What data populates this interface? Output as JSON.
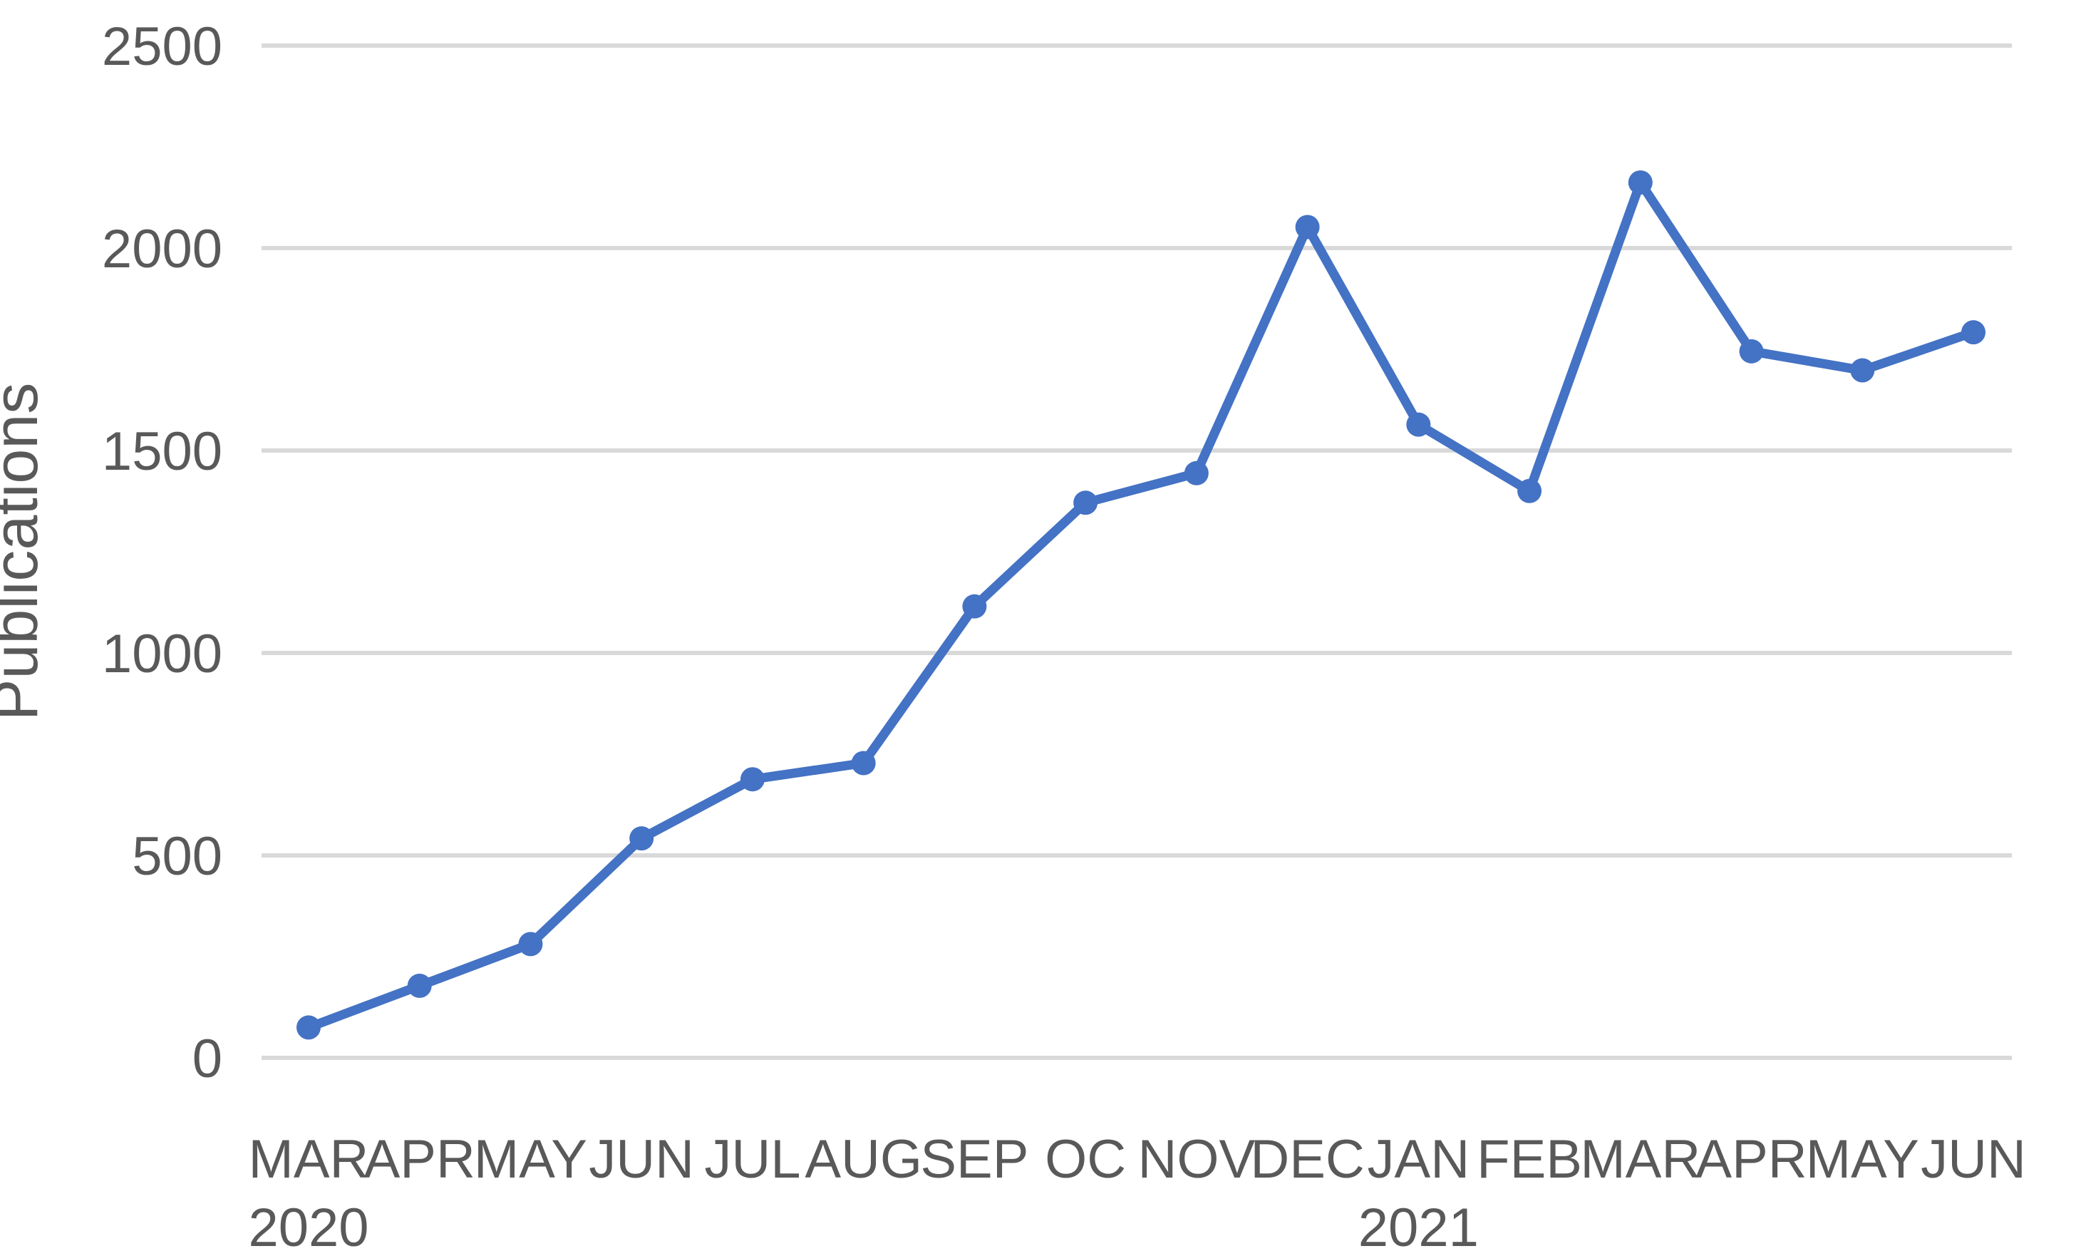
{
  "chart_data": {
    "type": "line",
    "title": "",
    "xlabel": "",
    "ylabel": "Publications",
    "ylim": [
      0,
      2500
    ],
    "yticks": [
      0,
      500,
      1000,
      1500,
      2000,
      2500
    ],
    "grid": true,
    "legend": "none",
    "categories": [
      "MAR",
      "APR",
      "MAY",
      "JUN",
      "JUL",
      "AUG",
      "SEP",
      "OC",
      "NOV",
      "DEC",
      "JAN",
      "FEB",
      "MAR",
      "APR",
      "MAY",
      "JUN"
    ],
    "year_labels": [
      {
        "text": "2020",
        "index": 0
      },
      {
        "text": "2021",
        "index": 10
      }
    ],
    "series": [
      {
        "name": "Publications",
        "color": "#4472C4",
        "values": [
          75,
          178,
          281,
          542,
          688,
          728,
          1115,
          1371,
          1444,
          2052,
          1564,
          1400,
          2162,
          1745,
          1698,
          1792
        ]
      }
    ]
  },
  "style": {
    "grid_color": "#D9D9D9",
    "axis_line_color": "#D9D9D9",
    "tick_label_color": "#595959",
    "axis_title_color": "#595959",
    "background": "#FFFFFF"
  }
}
